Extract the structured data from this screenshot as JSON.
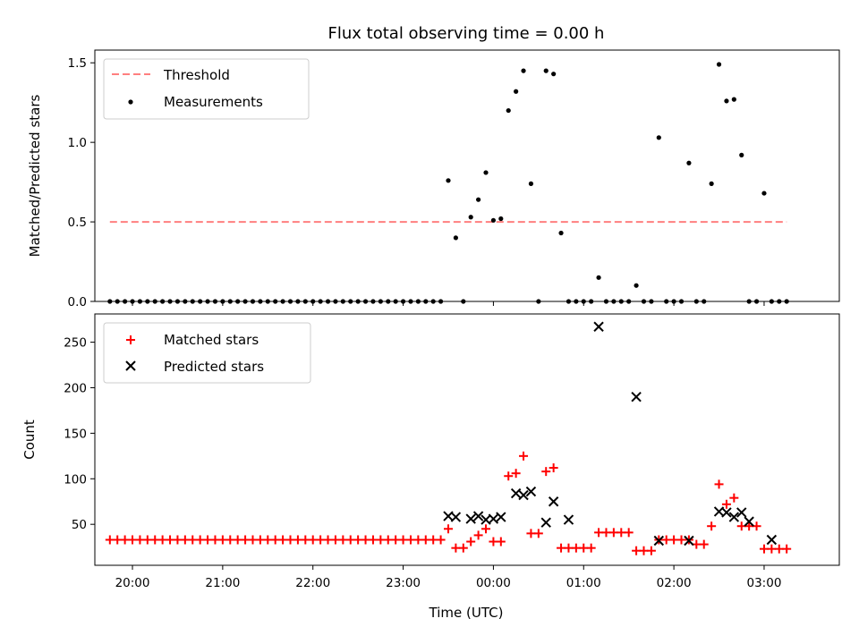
{
  "chart_data": {
    "title": "Flux total observing time = 0.00 h",
    "xlabel": "Time (UTC)",
    "x_tick_labels": [
      "20:00",
      "21:00",
      "22:00",
      "23:00",
      "00:00",
      "01:00",
      "02:00",
      "03:00"
    ],
    "colors": {
      "threshold": "#ff7f7f",
      "measurements": "#000000",
      "matched": "#ff0000",
      "predicted": "#000000"
    },
    "panels": [
      {
        "type": "scatter",
        "ylabel": "Matched/Predicted stars",
        "xlim": [
          "19:35",
          "03:50"
        ],
        "ylim": [
          0,
          1.58
        ],
        "yticks": [
          0,
          0.5,
          1.0,
          1.5
        ],
        "ytick_labels": [
          "0.0",
          "0.5",
          "1.0",
          "1.5"
        ],
        "legend_position": "top-left",
        "legend": [
          "Threshold",
          "Measurements"
        ],
        "threshold": {
          "name": "Threshold",
          "value": 0.5,
          "x_range": [
            "19:45",
            "03:15"
          ]
        },
        "series": [
          {
            "name": "Measurements",
            "x": [
              "19:45",
              "19:50",
              "19:55",
              "20:00",
              "20:05",
              "20:10",
              "20:15",
              "20:20",
              "20:25",
              "20:30",
              "20:35",
              "20:40",
              "20:45",
              "20:50",
              "20:55",
              "21:00",
              "21:05",
              "21:10",
              "21:15",
              "21:20",
              "21:25",
              "21:30",
              "21:35",
              "21:40",
              "21:45",
              "21:50",
              "21:55",
              "22:00",
              "22:05",
              "22:10",
              "22:15",
              "22:20",
              "22:25",
              "22:30",
              "22:35",
              "22:40",
              "22:45",
              "22:50",
              "22:55",
              "23:00",
              "23:05",
              "23:10",
              "23:15",
              "23:20",
              "23:25",
              "23:30",
              "23:35",
              "23:40",
              "23:45",
              "23:50",
              "23:55",
              "00:00",
              "00:05",
              "00:10",
              "00:15",
              "00:20",
              "00:25",
              "00:30",
              "00:35",
              "00:40",
              "00:45",
              "00:50",
              "00:55",
              "01:00",
              "01:05",
              "01:10",
              "01:15",
              "01:20",
              "01:25",
              "01:30",
              "01:35",
              "01:40",
              "01:45",
              "01:50",
              "01:55",
              "02:00",
              "02:05",
              "02:10",
              "02:15",
              "02:20",
              "02:25",
              "02:30",
              "02:35",
              "02:40",
              "02:45",
              "02:50",
              "02:55",
              "03:00",
              "03:05",
              "03:10",
              "03:15"
            ],
            "y": [
              0,
              0,
              0,
              0,
              0,
              0,
              0,
              0,
              0,
              0,
              0,
              0,
              0,
              0,
              0,
              0,
              0,
              0,
              0,
              0,
              0,
              0,
              0,
              0,
              0,
              0,
              0,
              0,
              0,
              0,
              0,
              0,
              0,
              0,
              0,
              0,
              0,
              0,
              0,
              0,
              0,
              0,
              0,
              0,
              0,
              0.76,
              0.4,
              0,
              0.53,
              0.64,
              0.81,
              0.51,
              0.52,
              1.2,
              1.32,
              1.45,
              0.74,
              0,
              1.45,
              1.43,
              0.43,
              0,
              0,
              0,
              0,
              0.15,
              0,
              0,
              0,
              0,
              0.1,
              0,
              0,
              1.03,
              0,
              0,
              0,
              0.87,
              0,
              0,
              0.74,
              1.49,
              1.26,
              1.27,
              0.92,
              0,
              0,
              0.68,
              0,
              0,
              0
            ]
          }
        ]
      },
      {
        "type": "scatter",
        "ylabel": "Count",
        "xlim": [
          "19:35",
          "03:50"
        ],
        "ylim": [
          5,
          281
        ],
        "yticks": [
          50,
          100,
          150,
          200,
          250
        ],
        "ytick_labels": [
          "50",
          "100",
          "150",
          "200",
          "250"
        ],
        "legend_position": "top-left",
        "legend": [
          "Matched stars",
          "Predicted stars"
        ],
        "series": [
          {
            "name": "Matched stars",
            "marker": "plus",
            "x": [
              "19:45",
              "19:50",
              "19:55",
              "20:00",
              "20:05",
              "20:10",
              "20:15",
              "20:20",
              "20:25",
              "20:30",
              "20:35",
              "20:40",
              "20:45",
              "20:50",
              "20:55",
              "21:00",
              "21:05",
              "21:10",
              "21:15",
              "21:20",
              "21:25",
              "21:30",
              "21:35",
              "21:40",
              "21:45",
              "21:50",
              "21:55",
              "22:00",
              "22:05",
              "22:10",
              "22:15",
              "22:20",
              "22:25",
              "22:30",
              "22:35",
              "22:40",
              "22:45",
              "22:50",
              "22:55",
              "23:00",
              "23:05",
              "23:10",
              "23:15",
              "23:20",
              "23:25",
              "23:30",
              "23:35",
              "23:40",
              "23:45",
              "23:50",
              "23:55",
              "00:00",
              "00:05",
              "00:10",
              "00:15",
              "00:20",
              "00:25",
              "00:30",
              "00:35",
              "00:40",
              "00:45",
              "00:50",
              "00:55",
              "01:00",
              "01:05",
              "01:10",
              "01:15",
              "01:20",
              "01:25",
              "01:30",
              "01:35",
              "01:40",
              "01:45",
              "01:50",
              "01:55",
              "02:00",
              "02:05",
              "02:10",
              "02:15",
              "02:20",
              "02:25",
              "02:30",
              "02:35",
              "02:40",
              "02:45",
              "02:50",
              "02:55",
              "03:00",
              "03:05",
              "03:10",
              "03:15"
            ],
            "y": [
              33,
              33,
              33,
              33,
              33,
              33,
              33,
              33,
              33,
              33,
              33,
              33,
              33,
              33,
              33,
              33,
              33,
              33,
              33,
              33,
              33,
              33,
              33,
              33,
              33,
              33,
              33,
              33,
              33,
              33,
              33,
              33,
              33,
              33,
              33,
              33,
              33,
              33,
              33,
              33,
              33,
              33,
              33,
              33,
              33,
              45,
              24,
              24,
              31,
              38,
              45,
              31,
              31,
              103,
              106,
              125,
              40,
              40,
              108,
              112,
              24,
              24,
              24,
              24,
              24,
              41,
              41,
              41,
              41,
              41,
              21,
              21,
              21,
              33,
              33,
              33,
              33,
              33,
              28,
              28,
              48,
              94,
              72,
              79,
              48,
              48,
              48,
              23,
              23,
              23,
              23
            ]
          },
          {
            "name": "Predicted stars",
            "marker": "x",
            "x": [
              "23:30",
              "23:35",
              "23:45",
              "23:50",
              "23:55",
              "00:00",
              "00:05",
              "00:15",
              "00:20",
              "00:25",
              "00:35",
              "00:40",
              "00:50",
              "01:10",
              "01:35",
              "01:50",
              "02:10",
              "02:30",
              "02:35",
              "02:40",
              "02:45",
              "02:50",
              "03:05"
            ],
            "y": [
              59,
              58,
              56,
              59,
              55,
              56,
              58,
              84,
              82,
              86,
              52,
              75,
              55,
              267,
              190,
              32,
              32,
              64,
              63,
              58,
              63,
              53,
              33
            ]
          }
        ]
      }
    ]
  }
}
